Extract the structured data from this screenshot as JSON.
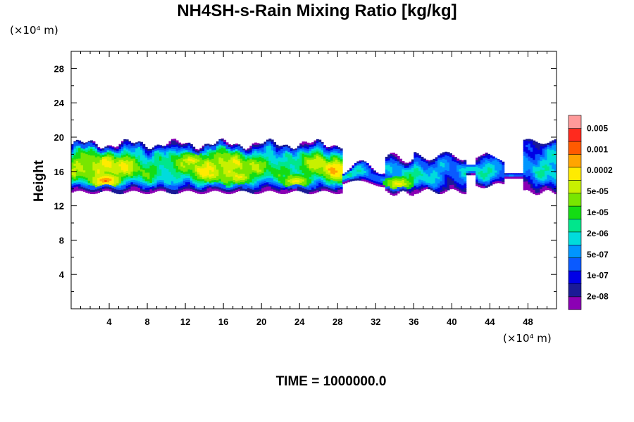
{
  "chart_data": {
    "type": "heatmap",
    "title": "NH4SH-s-Rain Mixing Ratio [kg/kg]",
    "ylabel": "Height",
    "x_unit": "(×10⁴ m)",
    "y_unit": "(×10⁴ m)",
    "xlim": [
      0,
      51
    ],
    "ylim": [
      0,
      30
    ],
    "x_ticks": [
      4,
      8,
      12,
      16,
      20,
      24,
      28,
      32,
      36,
      40,
      44,
      48
    ],
    "y_ticks": [
      4,
      8,
      12,
      16,
      20,
      24,
      28
    ],
    "colorbar": {
      "labels": [
        "0.005",
        "0.001",
        "0.0002",
        "5e-05",
        "1e-05",
        "2e-06",
        "5e-07",
        "1e-07",
        "2e-08"
      ],
      "colors": [
        "#8b00b4",
        "#1a1a96",
        "#0000e6",
        "#0a5aff",
        "#0096ff",
        "#00dcdc",
        "#00e68c",
        "#14dc14",
        "#78e600",
        "#c8f000",
        "#ffeb00",
        "#ffa500",
        "#ff5a00",
        "#ff2a1e",
        "#ff9a9a"
      ]
    },
    "band": {
      "bottom": 13.5,
      "top": 20,
      "x_end": 51
    },
    "features": [
      {
        "x": 3.5,
        "y": 14.9,
        "level": 13
      },
      {
        "x": 12.5,
        "y": 17.2,
        "level": 11
      },
      {
        "x": 14.5,
        "y": 15.5,
        "level": 11
      },
      {
        "x": 17.5,
        "y": 15.3,
        "level": 11
      },
      {
        "x": 23.5,
        "y": 14.8,
        "level": 11
      },
      {
        "x": 34.3,
        "y": 14.5,
        "level": 11
      }
    ],
    "time_label": "TIME = 1000000.0"
  }
}
